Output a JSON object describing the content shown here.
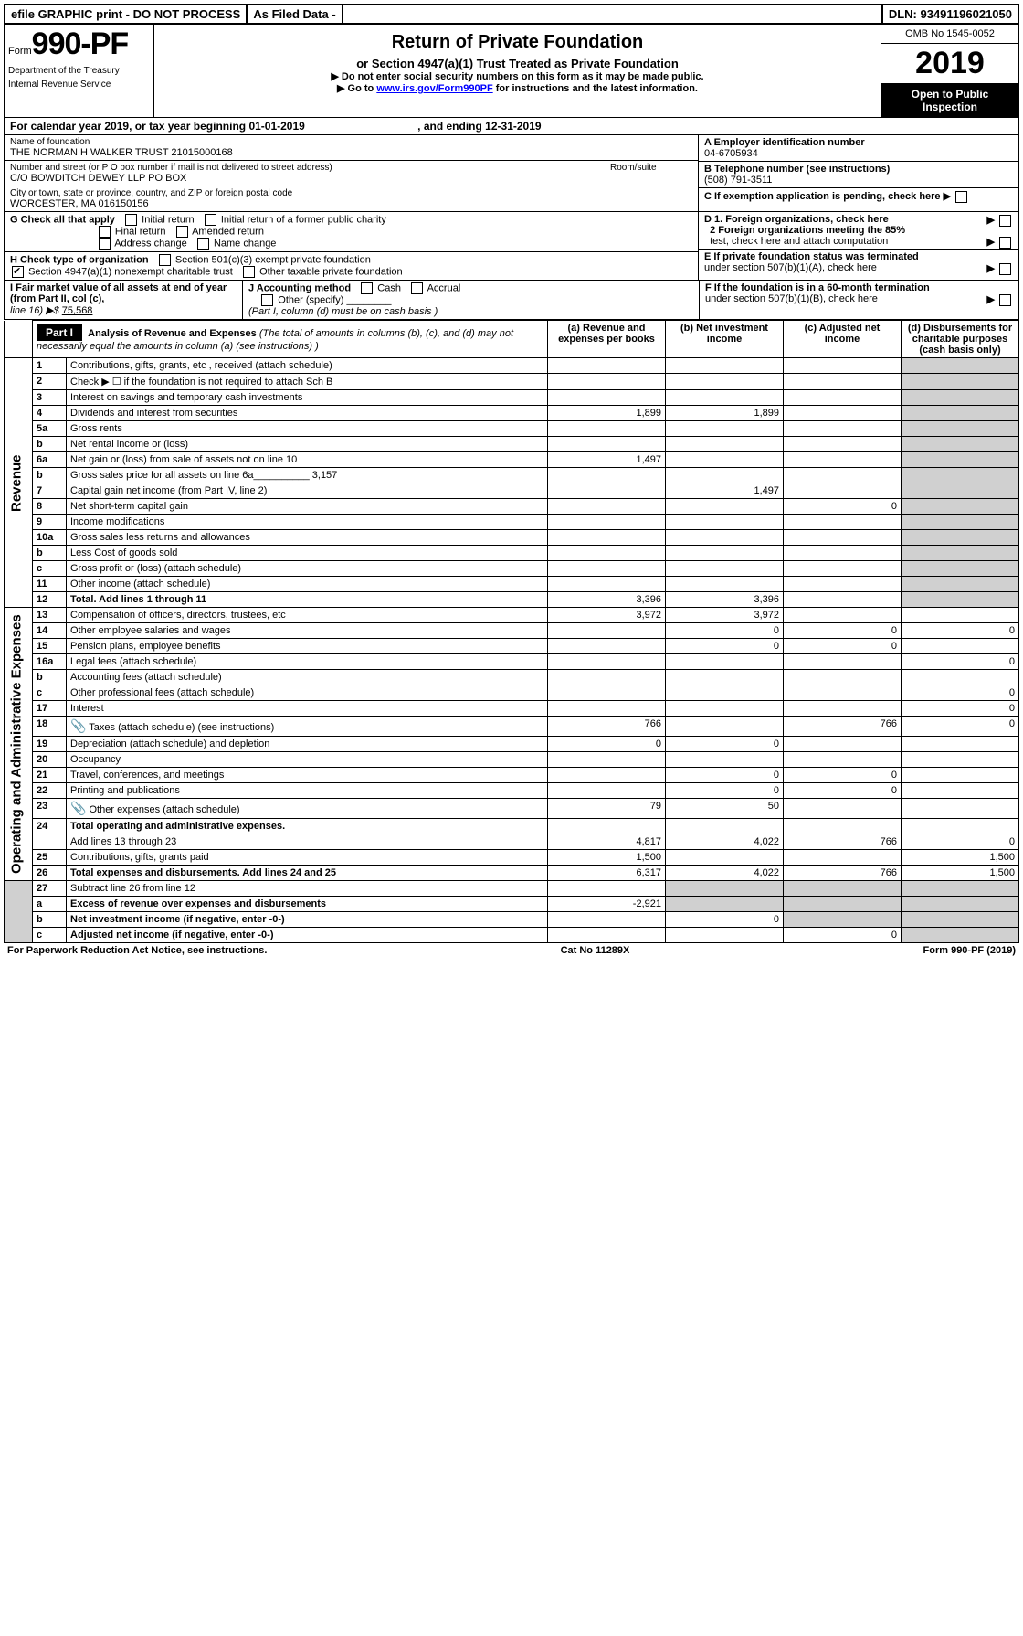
{
  "topbar": {
    "efile": "efile GRAPHIC print - DO NOT PROCESS",
    "asfiled": "As Filed Data -",
    "dln_label": "DLN:",
    "dln": "93491196021050"
  },
  "header": {
    "form_word": "Form",
    "form_num": "990-PF",
    "dept1": "Department of the Treasury",
    "dept2": "Internal Revenue Service",
    "title": "Return of Private Foundation",
    "subtitle": "or Section 4947(a)(1) Trust Treated as Private Foundation",
    "note1": "▶ Do not enter social security numbers on this form as it may be made public.",
    "note2_pre": "▶ Go to ",
    "note2_link": "www.irs.gov/Form990PF",
    "note2_post": " for instructions and the latest information.",
    "omb": "OMB No 1545-0052",
    "year": "2019",
    "open": "Open to Public Inspection"
  },
  "cal": {
    "text_a": "For calendar year 2019, or tax year beginning 01-01-2019",
    "text_b": ", and ending 12-31-2019"
  },
  "info": {
    "name_label": "Name of foundation",
    "name": "THE NORMAN H WALKER TRUST 21015000168",
    "addr_label": "Number and street (or P O  box number if mail is not delivered to street address)",
    "room_label": "Room/suite",
    "addr": "C/O BOWDITCH DEWEY LLP PO BOX",
    "city_label": "City or town, state or province, country, and ZIP or foreign postal code",
    "city": "WORCESTER, MA  016150156",
    "A_label": "A Employer identification number",
    "A_val": "04-6705934",
    "B_label": "B Telephone number (see instructions)",
    "B_val": "(508) 791-3511",
    "C_label": "C If exemption application is pending, check here"
  },
  "G": {
    "label": "G Check all that apply",
    "opts": [
      "Initial return",
      "Initial return of a former public charity",
      "Final return",
      "Amended return",
      "Address change",
      "Name change"
    ]
  },
  "H": {
    "label": "H Check type of organization",
    "o1": "Section 501(c)(3) exempt private foundation",
    "o2": "Section 4947(a)(1) nonexempt charitable trust",
    "o3": "Other taxable private foundation"
  },
  "D": {
    "d1": "D 1. Foreign organizations, check here",
    "d2a": "2 Foreign organizations meeting the 85%",
    "d2b": "test, check here and attach computation",
    "E_a": "E  If private foundation status was terminated",
    "E_b": "under section 507(b)(1)(A), check here"
  },
  "I": {
    "label": "I Fair market value of all assets at end of year (from Part II, col  (c),",
    "line": "line 16) ▶$  ",
    "val": "75,568"
  },
  "J": {
    "label": "J Accounting method",
    "cash": "Cash",
    "accrual": "Accrual",
    "other": "Other (specify)",
    "note": "(Part I, column (d) must be on cash basis )"
  },
  "F": {
    "a": "F  If the foundation is in a 60-month termination",
    "b": "under section 507(b)(1)(B), check here"
  },
  "part1": {
    "label": "Part I",
    "title": "Analysis of Revenue and Expenses",
    "note": " (The total of amounts in columns (b), (c), and (d) may not necessarily equal the amounts in column (a) (see instructions) )",
    "col_a": "(a) Revenue and expenses per books",
    "col_b": "(b) Net investment income",
    "col_c": "(c) Adjusted net income",
    "col_d": "(d) Disbursements for charitable purposes (cash basis only)"
  },
  "groups": {
    "rev": "Revenue",
    "exp": "Operating and Administrative Expenses"
  },
  "rows": [
    {
      "n": "1",
      "d": "Contributions, gifts, grants, etc , received (attach schedule)"
    },
    {
      "n": "2",
      "d": "Check ▶ ☐ if the foundation is not required to attach Sch  B"
    },
    {
      "n": "3",
      "d": "Interest on savings and temporary cash investments"
    },
    {
      "n": "4",
      "d": "Dividends and interest from securities",
      "a": "1,899",
      "b": "1,899"
    },
    {
      "n": "5a",
      "d": "Gross rents"
    },
    {
      "n": "b",
      "d": "Net rental income or (loss)"
    },
    {
      "n": "6a",
      "d": "Net gain or (loss) from sale of assets not on line 10",
      "a": "1,497"
    },
    {
      "n": "b",
      "d": "Gross sales price for all assets on line 6a__________ 3,157"
    },
    {
      "n": "7",
      "d": "Capital gain net income (from Part IV, line 2)",
      "b": "1,497"
    },
    {
      "n": "8",
      "d": "Net short-term capital gain",
      "c": "0"
    },
    {
      "n": "9",
      "d": "Income modifications"
    },
    {
      "n": "10a",
      "d": "Gross sales less returns and allowances"
    },
    {
      "n": "b",
      "d": "Less  Cost of goods sold"
    },
    {
      "n": "c",
      "d": "Gross profit or (loss) (attach schedule)"
    },
    {
      "n": "11",
      "d": "Other income (attach schedule)"
    },
    {
      "n": "12",
      "d": "Total. Add lines 1 through 11",
      "bold": true,
      "a": "3,396",
      "b": "3,396"
    }
  ],
  "exprows": [
    {
      "n": "13",
      "d": "Compensation of officers, directors, trustees, etc",
      "a": "3,972",
      "b": "3,972"
    },
    {
      "n": "14",
      "d": "Other employee salaries and wages",
      "b": "0",
      "c": "0",
      "dd": "0"
    },
    {
      "n": "15",
      "d": "Pension plans, employee benefits",
      "b": "0",
      "c": "0"
    },
    {
      "n": "16a",
      "d": "Legal fees (attach schedule)",
      "dd": "0"
    },
    {
      "n": "b",
      "d": "Accounting fees (attach schedule)"
    },
    {
      "n": "c",
      "d": "Other professional fees (attach schedule)",
      "dd": "0"
    },
    {
      "n": "17",
      "d": "Interest",
      "dd": "0"
    },
    {
      "n": "18",
      "d": "Taxes (attach schedule) (see instructions)",
      "icon": true,
      "a": "766",
      "c": "766",
      "dd": "0"
    },
    {
      "n": "19",
      "d": "Depreciation (attach schedule) and depletion",
      "a": "0",
      "b": "0"
    },
    {
      "n": "20",
      "d": "Occupancy"
    },
    {
      "n": "21",
      "d": "Travel, conferences, and meetings",
      "b": "0",
      "c": "0"
    },
    {
      "n": "22",
      "d": "Printing and publications",
      "b": "0",
      "c": "0"
    },
    {
      "n": "23",
      "d": "Other expenses (attach schedule)",
      "icon": true,
      "a": "79",
      "b": "50"
    },
    {
      "n": "24",
      "d": "Total operating and administrative expenses.",
      "bold": true
    },
    {
      "n": "",
      "d": "Add lines 13 through 23",
      "a": "4,817",
      "b": "4,022",
      "c": "766",
      "dd": "0"
    },
    {
      "n": "25",
      "d": "Contributions, gifts, grants paid",
      "a": "1,500",
      "dd": "1,500"
    },
    {
      "n": "26",
      "d": "Total expenses and disbursements. Add lines 24 and 25",
      "bold": true,
      "a": "6,317",
      "b": "4,022",
      "c": "766",
      "dd": "1,500"
    }
  ],
  "botrows": [
    {
      "n": "27",
      "d": "Subtract line 26 from line 12"
    },
    {
      "n": "a",
      "d": "Excess of revenue over expenses and disbursements",
      "bold": true,
      "a": "-2,921"
    },
    {
      "n": "b",
      "d": "Net investment income (if negative, enter -0-)",
      "bold": true,
      "b": "0"
    },
    {
      "n": "c",
      "d": "Adjusted net income (if negative, enter -0-)",
      "bold": true,
      "c": "0"
    }
  ],
  "footer": {
    "left": "For Paperwork Reduction Act Notice, see instructions.",
    "mid": "Cat  No  11289X",
    "right": "Form 990-PF (2019)"
  }
}
